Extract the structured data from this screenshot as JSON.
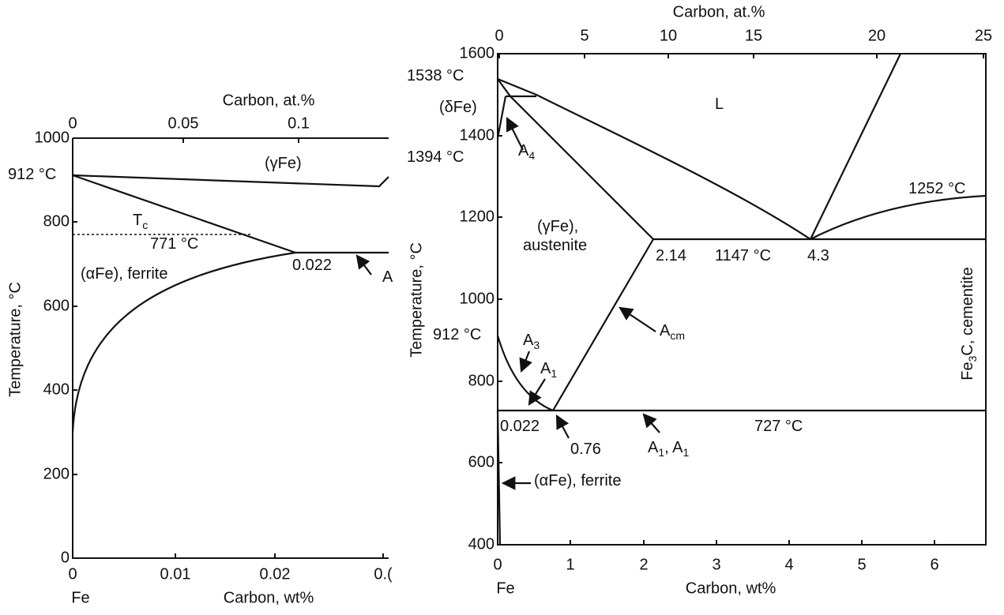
{
  "left_panel": {
    "top_axis": {
      "title": "Carbon, at.%",
      "ticks": [
        "0",
        "0.05",
        "0.1"
      ]
    },
    "left_axis": {
      "title": "Temperature, °C",
      "ticks": [
        "0",
        "200",
        "400",
        "600",
        "800",
        "1000"
      ]
    },
    "bottom_axis": {
      "title": "Carbon, wt%",
      "origin": "Fe",
      "ticks": [
        "0",
        "0.01",
        "0.02",
        "0.("
      ]
    },
    "labels": [
      {
        "text": "912 °C"
      },
      {
        "text": "(γFe)"
      },
      {
        "text": "T",
        "sub": "c"
      },
      {
        "text": "771 °C"
      },
      {
        "text": "0.022"
      },
      {
        "text": "(αFe), ferrite"
      },
      {
        "text": "A"
      }
    ]
  },
  "right_panel": {
    "top_axis": {
      "title": "Carbon, at.%",
      "ticks": [
        "0",
        "5",
        "10",
        "15",
        "20",
        "25"
      ]
    },
    "left_axis": {
      "title": "Temperature, °C",
      "ticks": [
        "400",
        "600",
        "800",
        "1000",
        "1200",
        "1400",
        "1600"
      ]
    },
    "bottom_axis": {
      "title": "Carbon, wt%",
      "origin": "Fe",
      "ticks": [
        "0",
        "1",
        "2",
        "3",
        "4",
        "5",
        "6"
      ]
    },
    "labels": [
      {
        "text": "1538 °C"
      },
      {
        "text": "(δFe)"
      },
      {
        "text": "1394 °C"
      },
      {
        "text": "912 °C"
      },
      {
        "text": "L"
      },
      {
        "text": "A",
        "sub": "4"
      },
      {
        "text": "(γFe),"
      },
      {
        "text": "austenite"
      },
      {
        "text": "2.14"
      },
      {
        "text": "1147 °C"
      },
      {
        "text": "4.3"
      },
      {
        "text": "1252 °C"
      },
      {
        "text": "A",
        "sub": "cm"
      },
      {
        "text": "A",
        "sub": "3"
      },
      {
        "text": "A",
        "sub": "1"
      },
      {
        "text": "0.022"
      },
      {
        "text": "0.76"
      },
      {
        "text": "A",
        "sub": "1",
        "rest": ", A"
      },
      {
        "text": "727 °C"
      },
      {
        "text": "(αFe), ferrite"
      },
      {
        "text": "Fe",
        "sub": "3",
        "rest": "C, cementite"
      }
    ]
  }
}
